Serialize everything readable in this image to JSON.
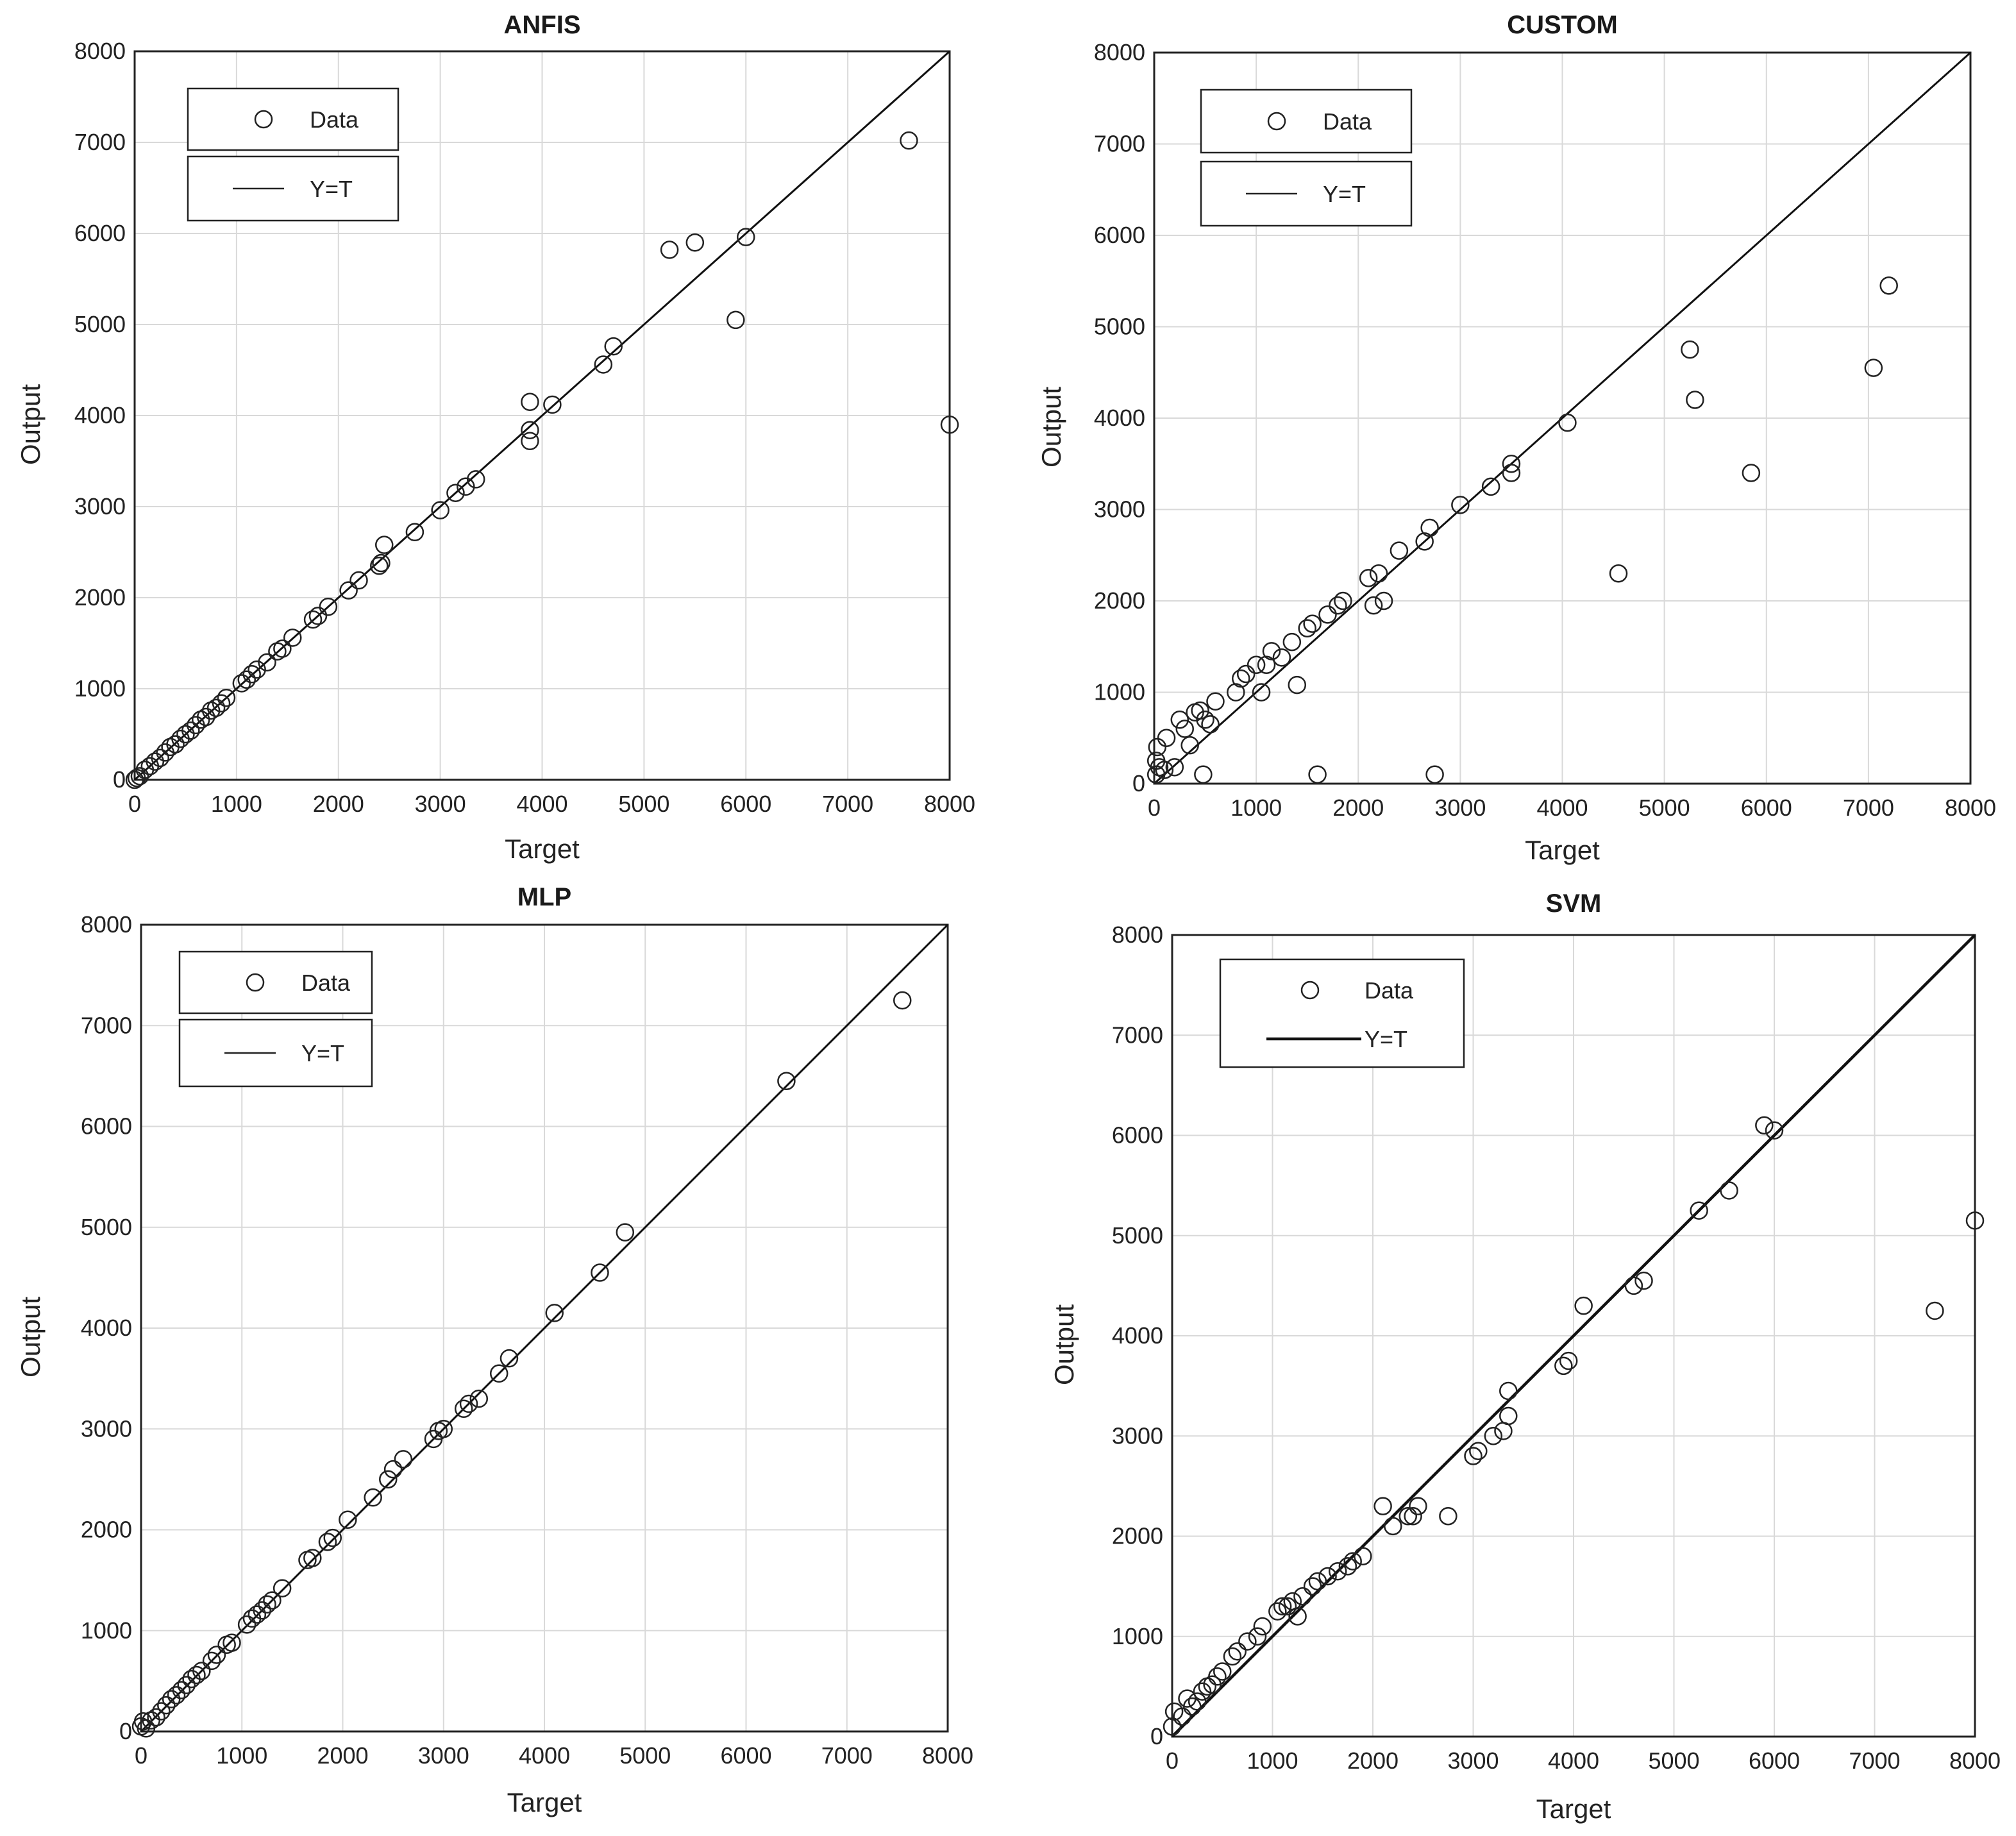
{
  "chart_data": [
    {
      "type": "scatter",
      "title": "ANFIS",
      "xlabel": "Target",
      "ylabel": "Output",
      "xlim": [
        0,
        8000
      ],
      "ylim": [
        0,
        8000
      ],
      "ticks": [
        "0",
        "1000",
        "2000",
        "3000",
        "4000",
        "5000",
        "6000",
        "7000",
        "8000"
      ],
      "grid": true,
      "legend": {
        "style": "split",
        "placement": "top-left",
        "data_label": "Data",
        "line_label": "Y=T"
      },
      "series": [
        {
          "name": "Data",
          "points": [
            [
              0,
              0
            ],
            [
              20,
              20
            ],
            [
              50,
              40
            ],
            [
              100,
              110
            ],
            [
              150,
              150
            ],
            [
              200,
              200
            ],
            [
              250,
              240
            ],
            [
              300,
              300
            ],
            [
              350,
              360
            ],
            [
              400,
              390
            ],
            [
              450,
              450
            ],
            [
              500,
              500
            ],
            [
              550,
              540
            ],
            [
              600,
              600
            ],
            [
              650,
              660
            ],
            [
              700,
              690
            ],
            [
              750,
              760
            ],
            [
              800,
              790
            ],
            [
              850,
              840
            ],
            [
              900,
              900
            ],
            [
              1050,
              1060
            ],
            [
              1100,
              1100
            ],
            [
              1150,
              1160
            ],
            [
              1200,
              1210
            ],
            [
              1300,
              1290
            ],
            [
              1400,
              1410
            ],
            [
              1450,
              1440
            ],
            [
              1550,
              1560
            ],
            [
              1750,
              1760
            ],
            [
              1800,
              1800
            ],
            [
              1900,
              1900
            ],
            [
              2100,
              2080
            ],
            [
              2200,
              2190
            ],
            [
              2400,
              2350
            ],
            [
              2420,
              2380
            ],
            [
              2450,
              2580
            ],
            [
              2750,
              2720
            ],
            [
              3000,
              2960
            ],
            [
              3150,
              3150
            ],
            [
              3250,
              3220
            ],
            [
              3350,
              3300
            ],
            [
              3880,
              4150
            ],
            [
              3880,
              3840
            ],
            [
              3880,
              3720
            ],
            [
              4100,
              4120
            ],
            [
              4600,
              4560
            ],
            [
              4700,
              4760
            ],
            [
              5250,
              5820
            ],
            [
              5500,
              5900
            ],
            [
              5900,
              5050
            ],
            [
              6000,
              5960
            ],
            [
              7600,
              7020
            ],
            [
              8000,
              3900
            ]
          ]
        },
        {
          "name": "Y=T",
          "line": [
            [
              0,
              0
            ],
            [
              8000,
              8000
            ]
          ]
        }
      ]
    },
    {
      "type": "scatter",
      "title": "CUSTOM",
      "xlabel": "Target",
      "ylabel": "Output",
      "xlim": [
        0,
        8000
      ],
      "ylim": [
        0,
        8000
      ],
      "ticks": [
        "0",
        "1000",
        "2000",
        "3000",
        "4000",
        "5000",
        "6000",
        "7000",
        "8000"
      ],
      "grid": true,
      "legend": {
        "style": "split",
        "placement": "top-left",
        "data_label": "Data",
        "line_label": "Y=T"
      },
      "series": [
        {
          "name": "Data",
          "points": [
            [
              20,
              100
            ],
            [
              20,
              250
            ],
            [
              30,
              400
            ],
            [
              50,
              180
            ],
            [
              100,
              150
            ],
            [
              120,
              500
            ],
            [
              200,
              180
            ],
            [
              250,
              700
            ],
            [
              300,
              600
            ],
            [
              350,
              420
            ],
            [
              400,
              780
            ],
            [
              450,
              800
            ],
            [
              480,
              100
            ],
            [
              500,
              700
            ],
            [
              550,
              650
            ],
            [
              600,
              900
            ],
            [
              800,
              1000
            ],
            [
              850,
              1150
            ],
            [
              900,
              1200
            ],
            [
              1000,
              1300
            ],
            [
              1050,
              1000
            ],
            [
              1100,
              1300
            ],
            [
              1150,
              1450
            ],
            [
              1250,
              1380
            ],
            [
              1350,
              1550
            ],
            [
              1400,
              1080
            ],
            [
              1500,
              1700
            ],
            [
              1550,
              1750
            ],
            [
              1600,
              100
            ],
            [
              1700,
              1850
            ],
            [
              1800,
              1950
            ],
            [
              1850,
              2000
            ],
            [
              2100,
              2250
            ],
            [
              2150,
              1950
            ],
            [
              2200,
              2300
            ],
            [
              2250,
              2000
            ],
            [
              2400,
              2550
            ],
            [
              2650,
              2650
            ],
            [
              2700,
              2800
            ],
            [
              2750,
              100
            ],
            [
              3000,
              3050
            ],
            [
              3300,
              3250
            ],
            [
              3500,
              3400
            ],
            [
              3500,
              3500
            ],
            [
              4050,
              3950
            ],
            [
              4550,
              2300
            ],
            [
              5250,
              4750
            ],
            [
              5300,
              4200
            ],
            [
              5850,
              3400
            ],
            [
              7050,
              4550
            ],
            [
              7200,
              5450
            ]
          ]
        },
        {
          "name": "Y=T",
          "line": [
            [
              0,
              0
            ],
            [
              8000,
              8000
            ]
          ]
        }
      ]
    },
    {
      "type": "scatter",
      "title": "MLP",
      "xlabel": "Target",
      "ylabel": "Output",
      "xlim": [
        0,
        8000
      ],
      "ylim": [
        0,
        8000
      ],
      "ticks": [
        "0",
        "1000",
        "2000",
        "3000",
        "4000",
        "5000",
        "6000",
        "7000",
        "8000"
      ],
      "grid": true,
      "legend": {
        "style": "split",
        "placement": "top-left",
        "data_label": "Data",
        "line_label": "Y=T"
      },
      "series": [
        {
          "name": "Data",
          "points": [
            [
              0,
              50
            ],
            [
              20,
              100
            ],
            [
              50,
              30
            ],
            [
              100,
              110
            ],
            [
              150,
              140
            ],
            [
              200,
              200
            ],
            [
              250,
              260
            ],
            [
              300,
              320
            ],
            [
              350,
              360
            ],
            [
              400,
              410
            ],
            [
              450,
              460
            ],
            [
              500,
              520
            ],
            [
              550,
              560
            ],
            [
              600,
              600
            ],
            [
              700,
              700
            ],
            [
              750,
              760
            ],
            [
              850,
              860
            ],
            [
              900,
              880
            ],
            [
              1050,
              1060
            ],
            [
              1100,
              1120
            ],
            [
              1150,
              1160
            ],
            [
              1200,
              1200
            ],
            [
              1250,
              1260
            ],
            [
              1300,
              1300
            ],
            [
              1400,
              1420
            ],
            [
              1650,
              1700
            ],
            [
              1700,
              1720
            ],
            [
              1850,
              1880
            ],
            [
              1900,
              1920
            ],
            [
              2050,
              2100
            ],
            [
              2300,
              2320
            ],
            [
              2450,
              2500
            ],
            [
              2500,
              2600
            ],
            [
              2600,
              2700
            ],
            [
              2900,
              2900
            ],
            [
              2950,
              2980
            ],
            [
              3000,
              3000
            ],
            [
              3200,
              3200
            ],
            [
              3250,
              3250
            ],
            [
              3350,
              3300
            ],
            [
              3550,
              3550
            ],
            [
              3650,
              3700
            ],
            [
              4100,
              4150
            ],
            [
              4550,
              4550
            ],
            [
              4800,
              4950
            ],
            [
              6400,
              6450
            ],
            [
              7550,
              7250
            ]
          ]
        },
        {
          "name": "Y=T",
          "line": [
            [
              0,
              0
            ],
            [
              8000,
              8000
            ]
          ]
        }
      ]
    },
    {
      "type": "scatter",
      "title": "SVM",
      "xlabel": "Target",
      "ylabel": "Output",
      "xlim": [
        0,
        8000
      ],
      "ylim": [
        0,
        8000
      ],
      "ticks": [
        "0",
        "1000",
        "2000",
        "3000",
        "4000",
        "5000",
        "6000",
        "7000",
        "8000"
      ],
      "grid": true,
      "legend": {
        "style": "combined",
        "placement": "top-left",
        "data_label": "Data",
        "line_label": "Y=T"
      },
      "series": [
        {
          "name": "Data",
          "points": [
            [
              0,
              100
            ],
            [
              20,
              250
            ],
            [
              100,
              200
            ],
            [
              150,
              380
            ],
            [
              200,
              300
            ],
            [
              250,
              350
            ],
            [
              300,
              450
            ],
            [
              350,
              500
            ],
            [
              400,
              520
            ],
            [
              450,
              600
            ],
            [
              500,
              650
            ],
            [
              600,
              800
            ],
            [
              650,
              850
            ],
            [
              750,
              950
            ],
            [
              850,
              1000
            ],
            [
              900,
              1100
            ],
            [
              1050,
              1250
            ],
            [
              1100,
              1300
            ],
            [
              1150,
              1300
            ],
            [
              1200,
              1350
            ],
            [
              1250,
              1200
            ],
            [
              1300,
              1400
            ],
            [
              1400,
              1500
            ],
            [
              1450,
              1550
            ],
            [
              1550,
              1600
            ],
            [
              1650,
              1650
            ],
            [
              1750,
              1700
            ],
            [
              1800,
              1750
            ],
            [
              1900,
              1800
            ],
            [
              2100,
              2300
            ],
            [
              2200,
              2100
            ],
            [
              2350,
              2200
            ],
            [
              2400,
              2200
            ],
            [
              2450,
              2300
            ],
            [
              2750,
              2200
            ],
            [
              3000,
              2800
            ],
            [
              3050,
              2850
            ],
            [
              3200,
              3000
            ],
            [
              3300,
              3050
            ],
            [
              3350,
              3200
            ],
            [
              3350,
              3450
            ],
            [
              3900,
              3700
            ],
            [
              3950,
              3750
            ],
            [
              4100,
              4300
            ],
            [
              4600,
              4500
            ],
            [
              4700,
              4550
            ],
            [
              5250,
              5250
            ],
            [
              5550,
              5450
            ],
            [
              5900,
              6100
            ],
            [
              6000,
              6050
            ],
            [
              7600,
              4250
            ],
            [
              8000,
              5150
            ]
          ]
        },
        {
          "name": "Y=T",
          "line": [
            [
              0,
              0
            ],
            [
              8000,
              8000
            ]
          ]
        }
      ]
    }
  ]
}
